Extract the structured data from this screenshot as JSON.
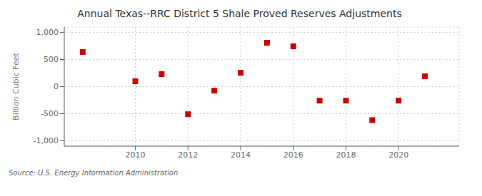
{
  "chart_data": {
    "type": "scatter",
    "title": "Annual Texas--RRC District 5 Shale Proved Reserves Adjustments",
    "ylabel": "Billion Cubic Feet",
    "source": "Source: U.S. Energy Information Administration",
    "x": [
      2008,
      2010,
      2011,
      2012,
      2013,
      2014,
      2015,
      2016,
      2017,
      2018,
      2019,
      2020,
      2021
    ],
    "values": [
      640,
      100,
      230,
      -510,
      -75,
      255,
      810,
      745,
      -260,
      -260,
      -620,
      -260,
      190
    ],
    "color": "#cc0000",
    "marker": "square",
    "xlim": [
      2007.3,
      2022.3
    ],
    "xticks": [
      2010,
      2012,
      2014,
      2016,
      2018,
      2020
    ],
    "ylim": [
      -1100,
      1100
    ],
    "yticks": [
      {
        "value": -1000,
        "label": "-1,000"
      },
      -500,
      0,
      500,
      {
        "value": 1000,
        "label": "1,000"
      }
    ],
    "grid": true
  }
}
